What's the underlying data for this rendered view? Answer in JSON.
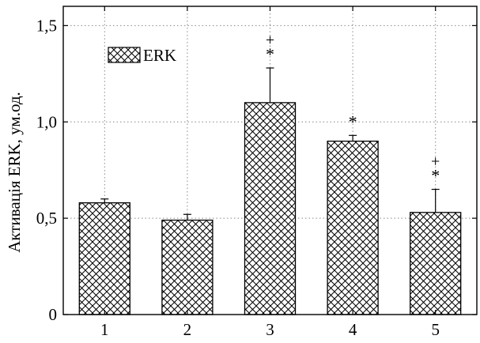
{
  "chart_data": {
    "type": "bar",
    "categories": [
      "1",
      "2",
      "3",
      "4",
      "5"
    ],
    "series": [
      {
        "name": "ERK",
        "values": [
          0.58,
          0.49,
          1.1,
          0.9,
          0.53
        ],
        "errors": [
          0.02,
          0.03,
          0.18,
          0.03,
          0.12
        ]
      }
    ],
    "annotations": [
      {
        "category": "3",
        "marks": [
          "+",
          "*"
        ]
      },
      {
        "category": "4",
        "marks": [
          "*"
        ]
      },
      {
        "category": "5",
        "marks": [
          "+",
          "*"
        ]
      }
    ],
    "ylabel": "Активація ERK, ум.од.",
    "xlabel": "",
    "title": "",
    "ylim": [
      0,
      1.6
    ],
    "yticks": [
      "0",
      "0,5",
      "1,0",
      "1,5"
    ],
    "ytick_values": [
      0,
      0.5,
      1.0,
      1.5
    ],
    "grid": true,
    "legend_position": "top-left",
    "bar_fill": "crosshatch"
  }
}
